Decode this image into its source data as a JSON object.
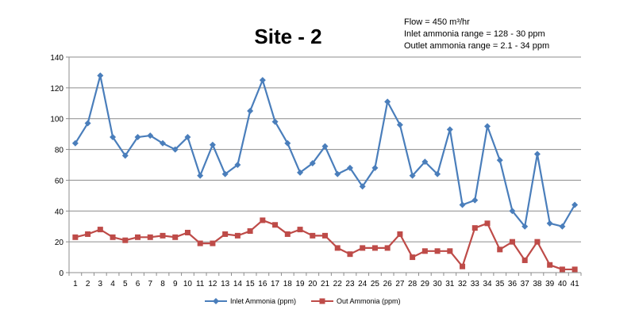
{
  "chart_data": {
    "type": "line",
    "title": "Site - 2",
    "annotations": [
      "Flow = 450 m³/hr",
      "Inlet ammonia range =  128 - 30 ppm",
      "Outlet ammonia range =  2.1 - 34 ppm"
    ],
    "xlabel": "",
    "ylabel": "",
    "categories": [
      "1",
      "2",
      "3",
      "4",
      "5",
      "6",
      "7",
      "8",
      "9",
      "10",
      "11",
      "12",
      "13",
      "14",
      "15",
      "16",
      "17",
      "18",
      "19",
      "20",
      "21",
      "22",
      "23",
      "24",
      "25",
      "26",
      "27",
      "28",
      "29",
      "30",
      "31",
      "32",
      "33",
      "34",
      "35",
      "36",
      "37",
      "38",
      "39",
      "40",
      "41"
    ],
    "ylim": [
      0,
      140
    ],
    "yticks": [
      0,
      20,
      40,
      60,
      80,
      100,
      120,
      140
    ],
    "grid": true,
    "legend_position": "bottom",
    "series": [
      {
        "name": "Inlet Ammonia (ppm)",
        "color": "#4a7ebb",
        "marker": "diamond",
        "values": [
          84,
          97,
          128,
          88,
          76,
          88,
          89,
          84,
          80,
          88,
          63,
          83,
          64,
          70,
          105,
          125,
          98,
          84,
          65,
          71,
          82,
          64,
          68,
          56,
          68,
          111,
          96,
          63,
          72,
          64,
          93,
          44,
          47,
          95,
          73,
          40,
          30,
          77,
          32,
          30,
          44
        ]
      },
      {
        "name": "Out Ammonia (ppm)",
        "color": "#be4b48",
        "marker": "square",
        "values": [
          23,
          25,
          28,
          23,
          21,
          23,
          23,
          24,
          23,
          26,
          19,
          19,
          25,
          24,
          27,
          34,
          31,
          25,
          28,
          24,
          24,
          16,
          12,
          16,
          16,
          16,
          25,
          10,
          14,
          14,
          14,
          4,
          29,
          32,
          15,
          20,
          8,
          20,
          5,
          2.1,
          2.1
        ]
      }
    ]
  }
}
